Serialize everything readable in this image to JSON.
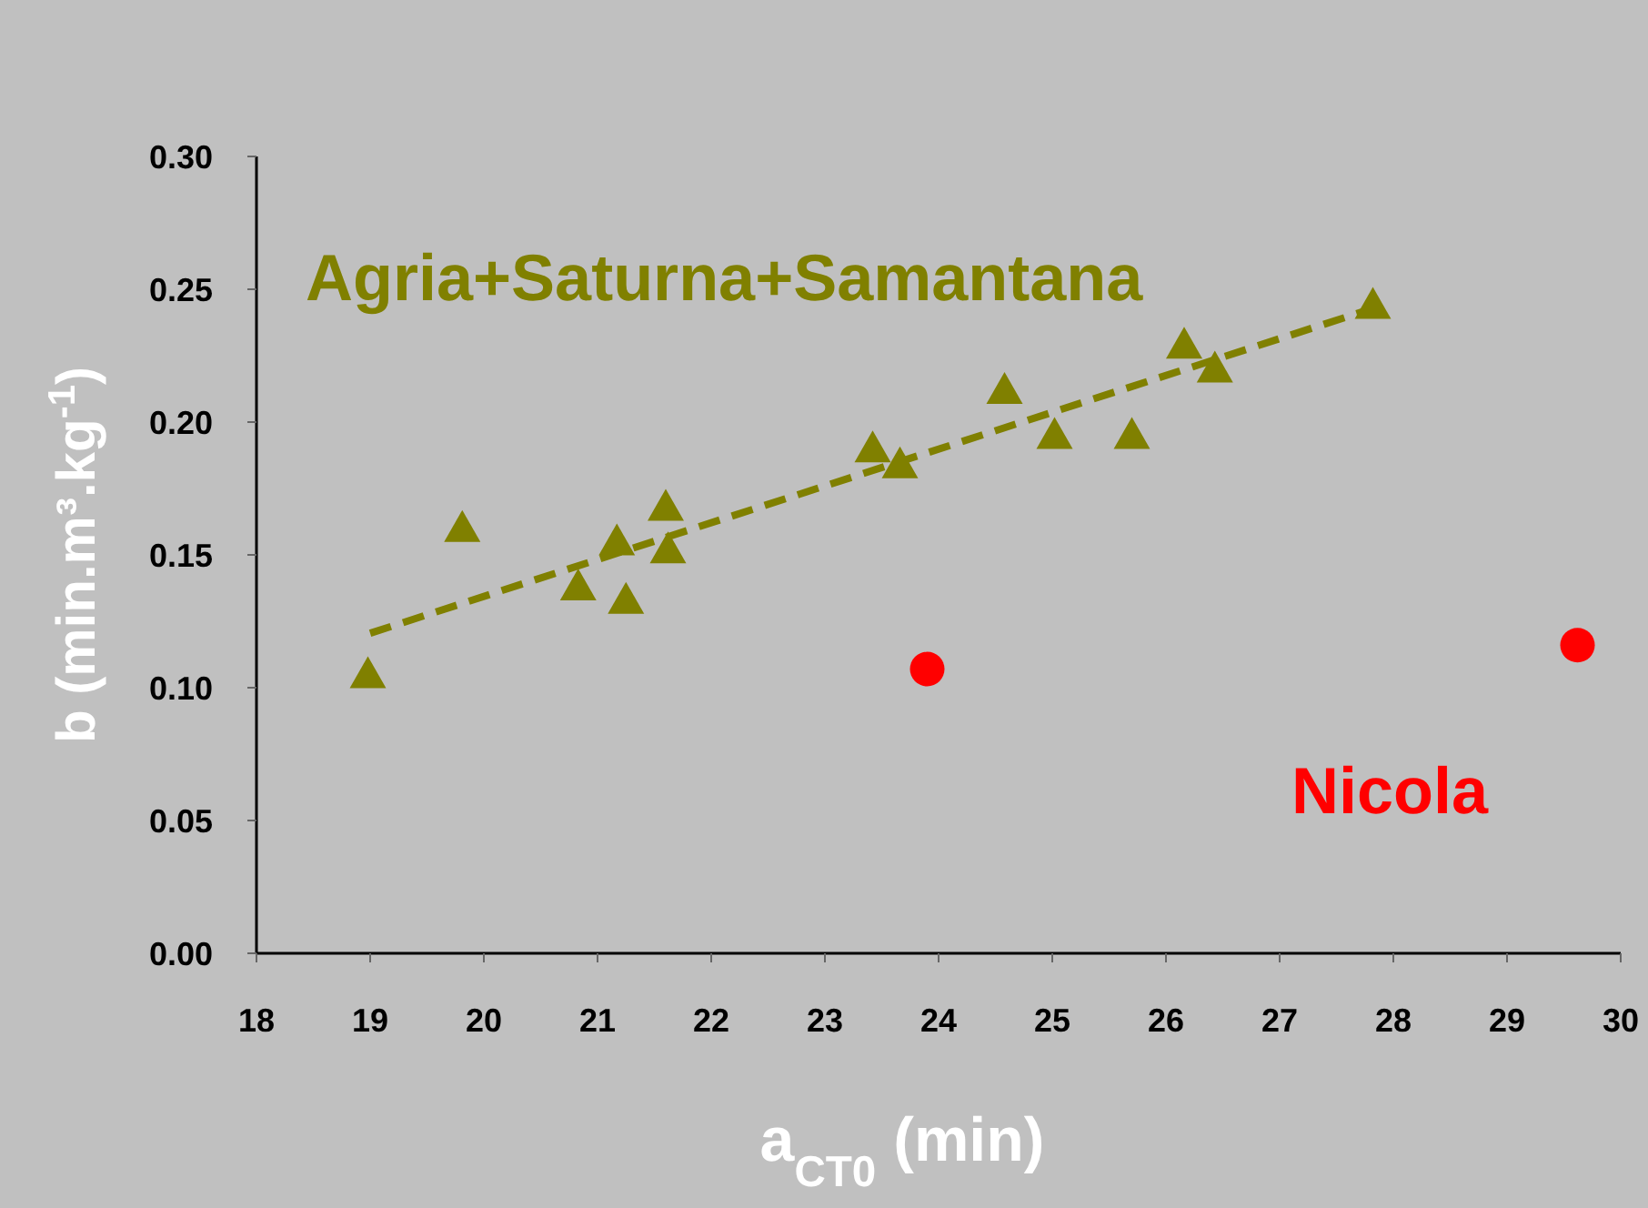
{
  "chart_data": {
    "type": "scatter",
    "xlabel": "a$_{CT0}$  (min)",
    "ylabel": "b (min.m³.kg$^{-1}$)",
    "xlim": [
      18,
      30
    ],
    "ylim": [
      0,
      0.3
    ],
    "xticks": [
      18,
      19,
      20,
      21,
      22,
      23,
      24,
      25,
      26,
      27,
      28,
      29,
      30
    ],
    "yticks": [
      {
        "value": 0,
        "label": "0.00"
      },
      {
        "value": 0.05,
        "label": "0.05"
      },
      {
        "value": 0.1,
        "label": "0.10"
      },
      {
        "value": 0.15,
        "label": "0.15"
      },
      {
        "value": 0.2,
        "label": "0.20"
      },
      {
        "value": 0.25,
        "label": "0.25"
      },
      {
        "value": 0.3,
        "label": "0.30"
      }
    ],
    "grid": false,
    "legend": false,
    "series": [
      {
        "name": "Agria+Saturna+Samantana",
        "color": "#808000",
        "marker": "triangle",
        "x": [
          18.98,
          19.81,
          20.83,
          21.17,
          21.25,
          21.6,
          21.62,
          23.42,
          23.66,
          24.58,
          25.02,
          25.7,
          26.16,
          26.43,
          27.82
        ],
        "values": [
          0.105,
          0.16,
          0.138,
          0.155,
          0.133,
          0.168,
          0.152,
          0.19,
          0.184,
          0.212,
          0.195,
          0.195,
          0.229,
          0.22,
          0.244
        ]
      },
      {
        "name": "Nicola",
        "color": "#ff0000",
        "marker": "circle",
        "x": [
          23.9,
          29.62
        ],
        "values": [
          0.107,
          0.116
        ]
      },
      {
        "type": "line",
        "color": "#808000",
        "line_style": "dashed",
        "marker": "none",
        "x": [
          19.0,
          27.8
        ],
        "values": [
          0.1205,
          0.2425
        ]
      }
    ]
  }
}
